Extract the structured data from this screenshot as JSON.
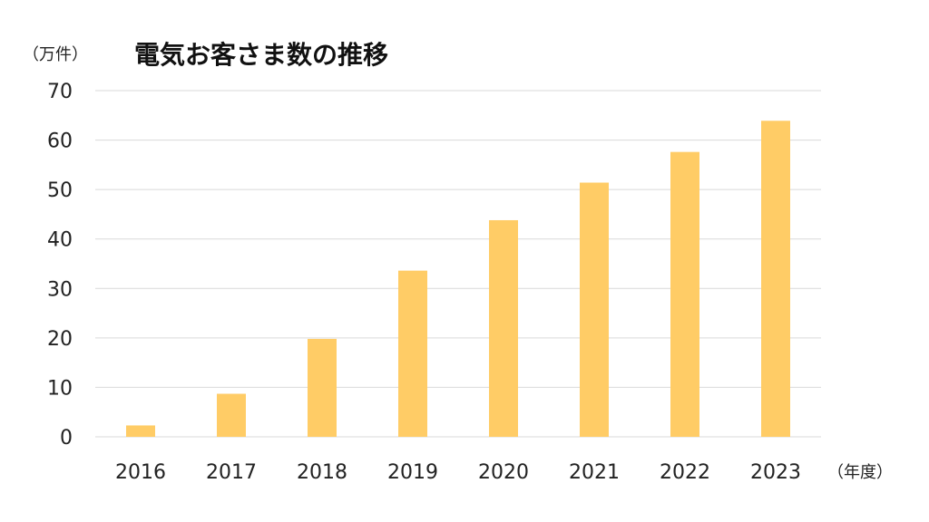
{
  "chart_data": {
    "type": "bar",
    "title": "電気お客さま数の推移",
    "y_unit": "（万件）",
    "x_unit": "（年度）",
    "categories": [
      "2016",
      "2017",
      "2018",
      "2019",
      "2020",
      "2021",
      "2022",
      "2023"
    ],
    "values": [
      2.3,
      8.7,
      19.8,
      33.6,
      43.8,
      51.4,
      57.6,
      63.9
    ],
    "ylim": [
      0,
      70
    ],
    "yticks": [
      0,
      10,
      20,
      30,
      40,
      50,
      60,
      70
    ],
    "grid": true,
    "legend": "none",
    "bar_color": "#FFCC66",
    "grid_color": "#D9D9D9"
  }
}
